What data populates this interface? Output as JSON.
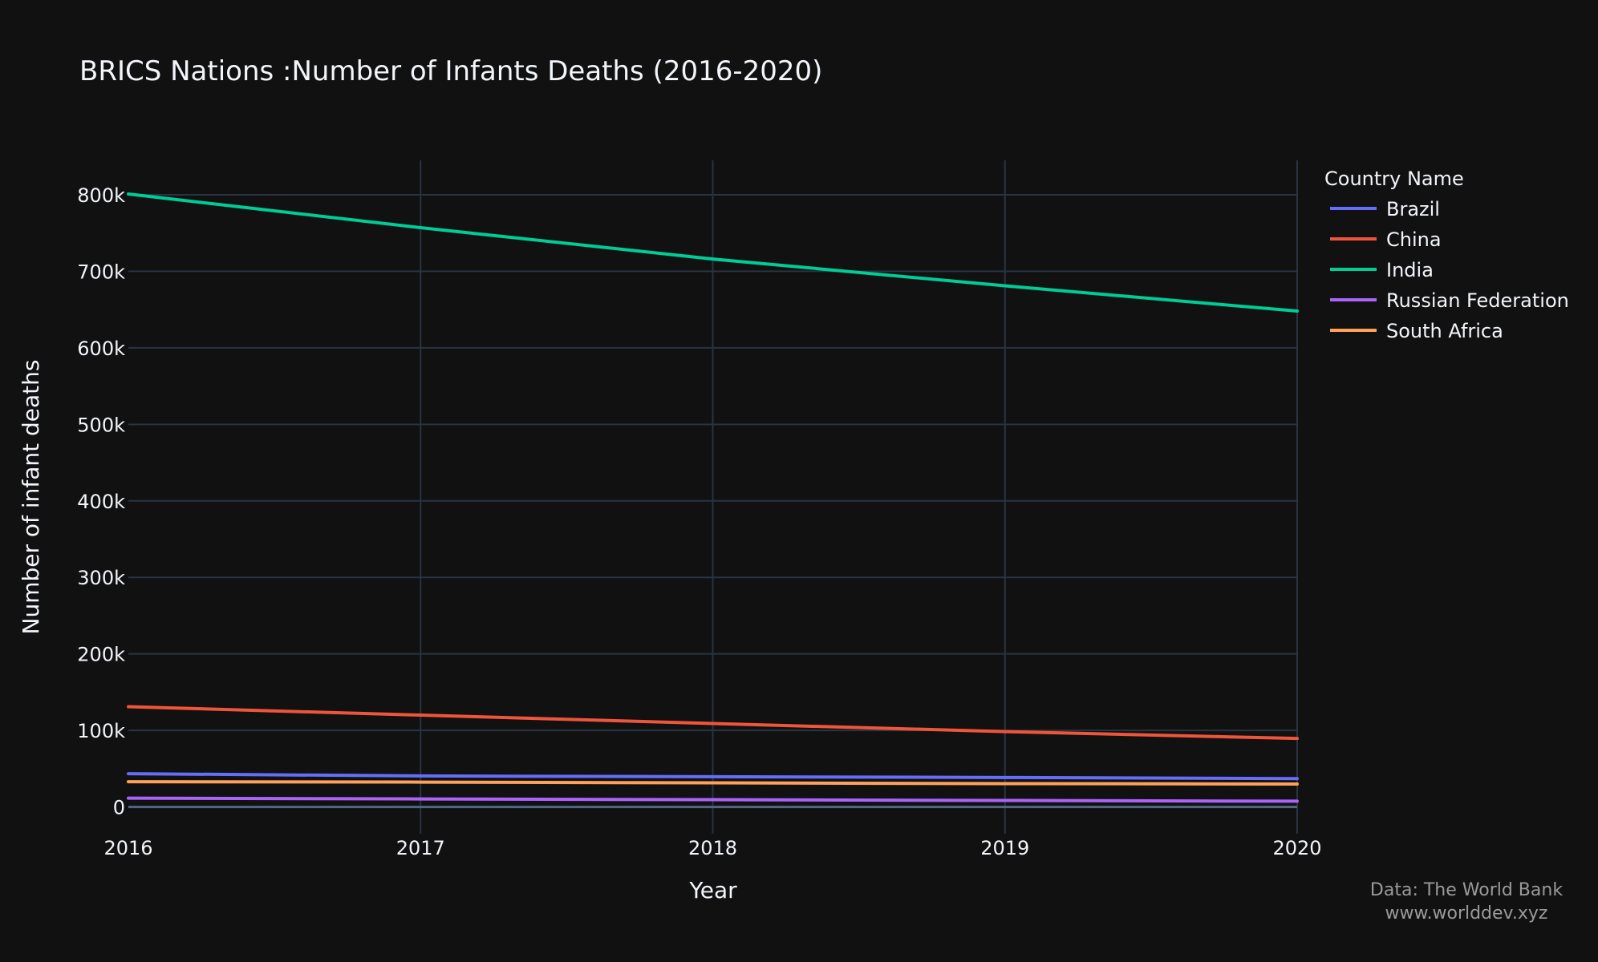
{
  "chart_data": {
    "type": "line",
    "title": "BRICS Nations :Number of Infants Deaths (2016-2020)",
    "xlabel": "Year",
    "ylabel": "Number of infant deaths",
    "x": [
      2016,
      2017,
      2018,
      2019,
      2020
    ],
    "x_tick_labels": [
      "2016",
      "2017",
      "2018",
      "2019",
      "2020"
    ],
    "xlim": [
      2016,
      2020
    ],
    "ylim": [
      -35000,
      845000
    ],
    "y_ticks": [
      0,
      100000,
      200000,
      300000,
      400000,
      500000,
      600000,
      700000,
      800000
    ],
    "y_tick_labels": [
      "0",
      "100k",
      "200k",
      "300k",
      "400k",
      "500k",
      "600k",
      "700k",
      "800k"
    ],
    "grid": true,
    "legend_title": "Country Name",
    "legend_position": "top-right",
    "series": [
      {
        "name": "Brazil",
        "color": "#636efa",
        "values": [
          43500,
          40500,
          39500,
          38500,
          37000
        ]
      },
      {
        "name": "China",
        "color": "#ef553b",
        "values": [
          131000,
          120000,
          109000,
          98500,
          89500
        ]
      },
      {
        "name": "India",
        "color": "#00cc96",
        "values": [
          801000,
          757000,
          716000,
          681000,
          648000
        ]
      },
      {
        "name": "Russian Federation",
        "color": "#ab63fa",
        "values": [
          11500,
          10500,
          9500,
          8500,
          7500
        ]
      },
      {
        "name": "South Africa",
        "color": "#ffa15a",
        "values": [
          33000,
          32500,
          31500,
          30500,
          30000
        ]
      }
    ]
  },
  "source": {
    "line1": "Data: The World Bank",
    "line2": "www.worlddev.xyz"
  }
}
